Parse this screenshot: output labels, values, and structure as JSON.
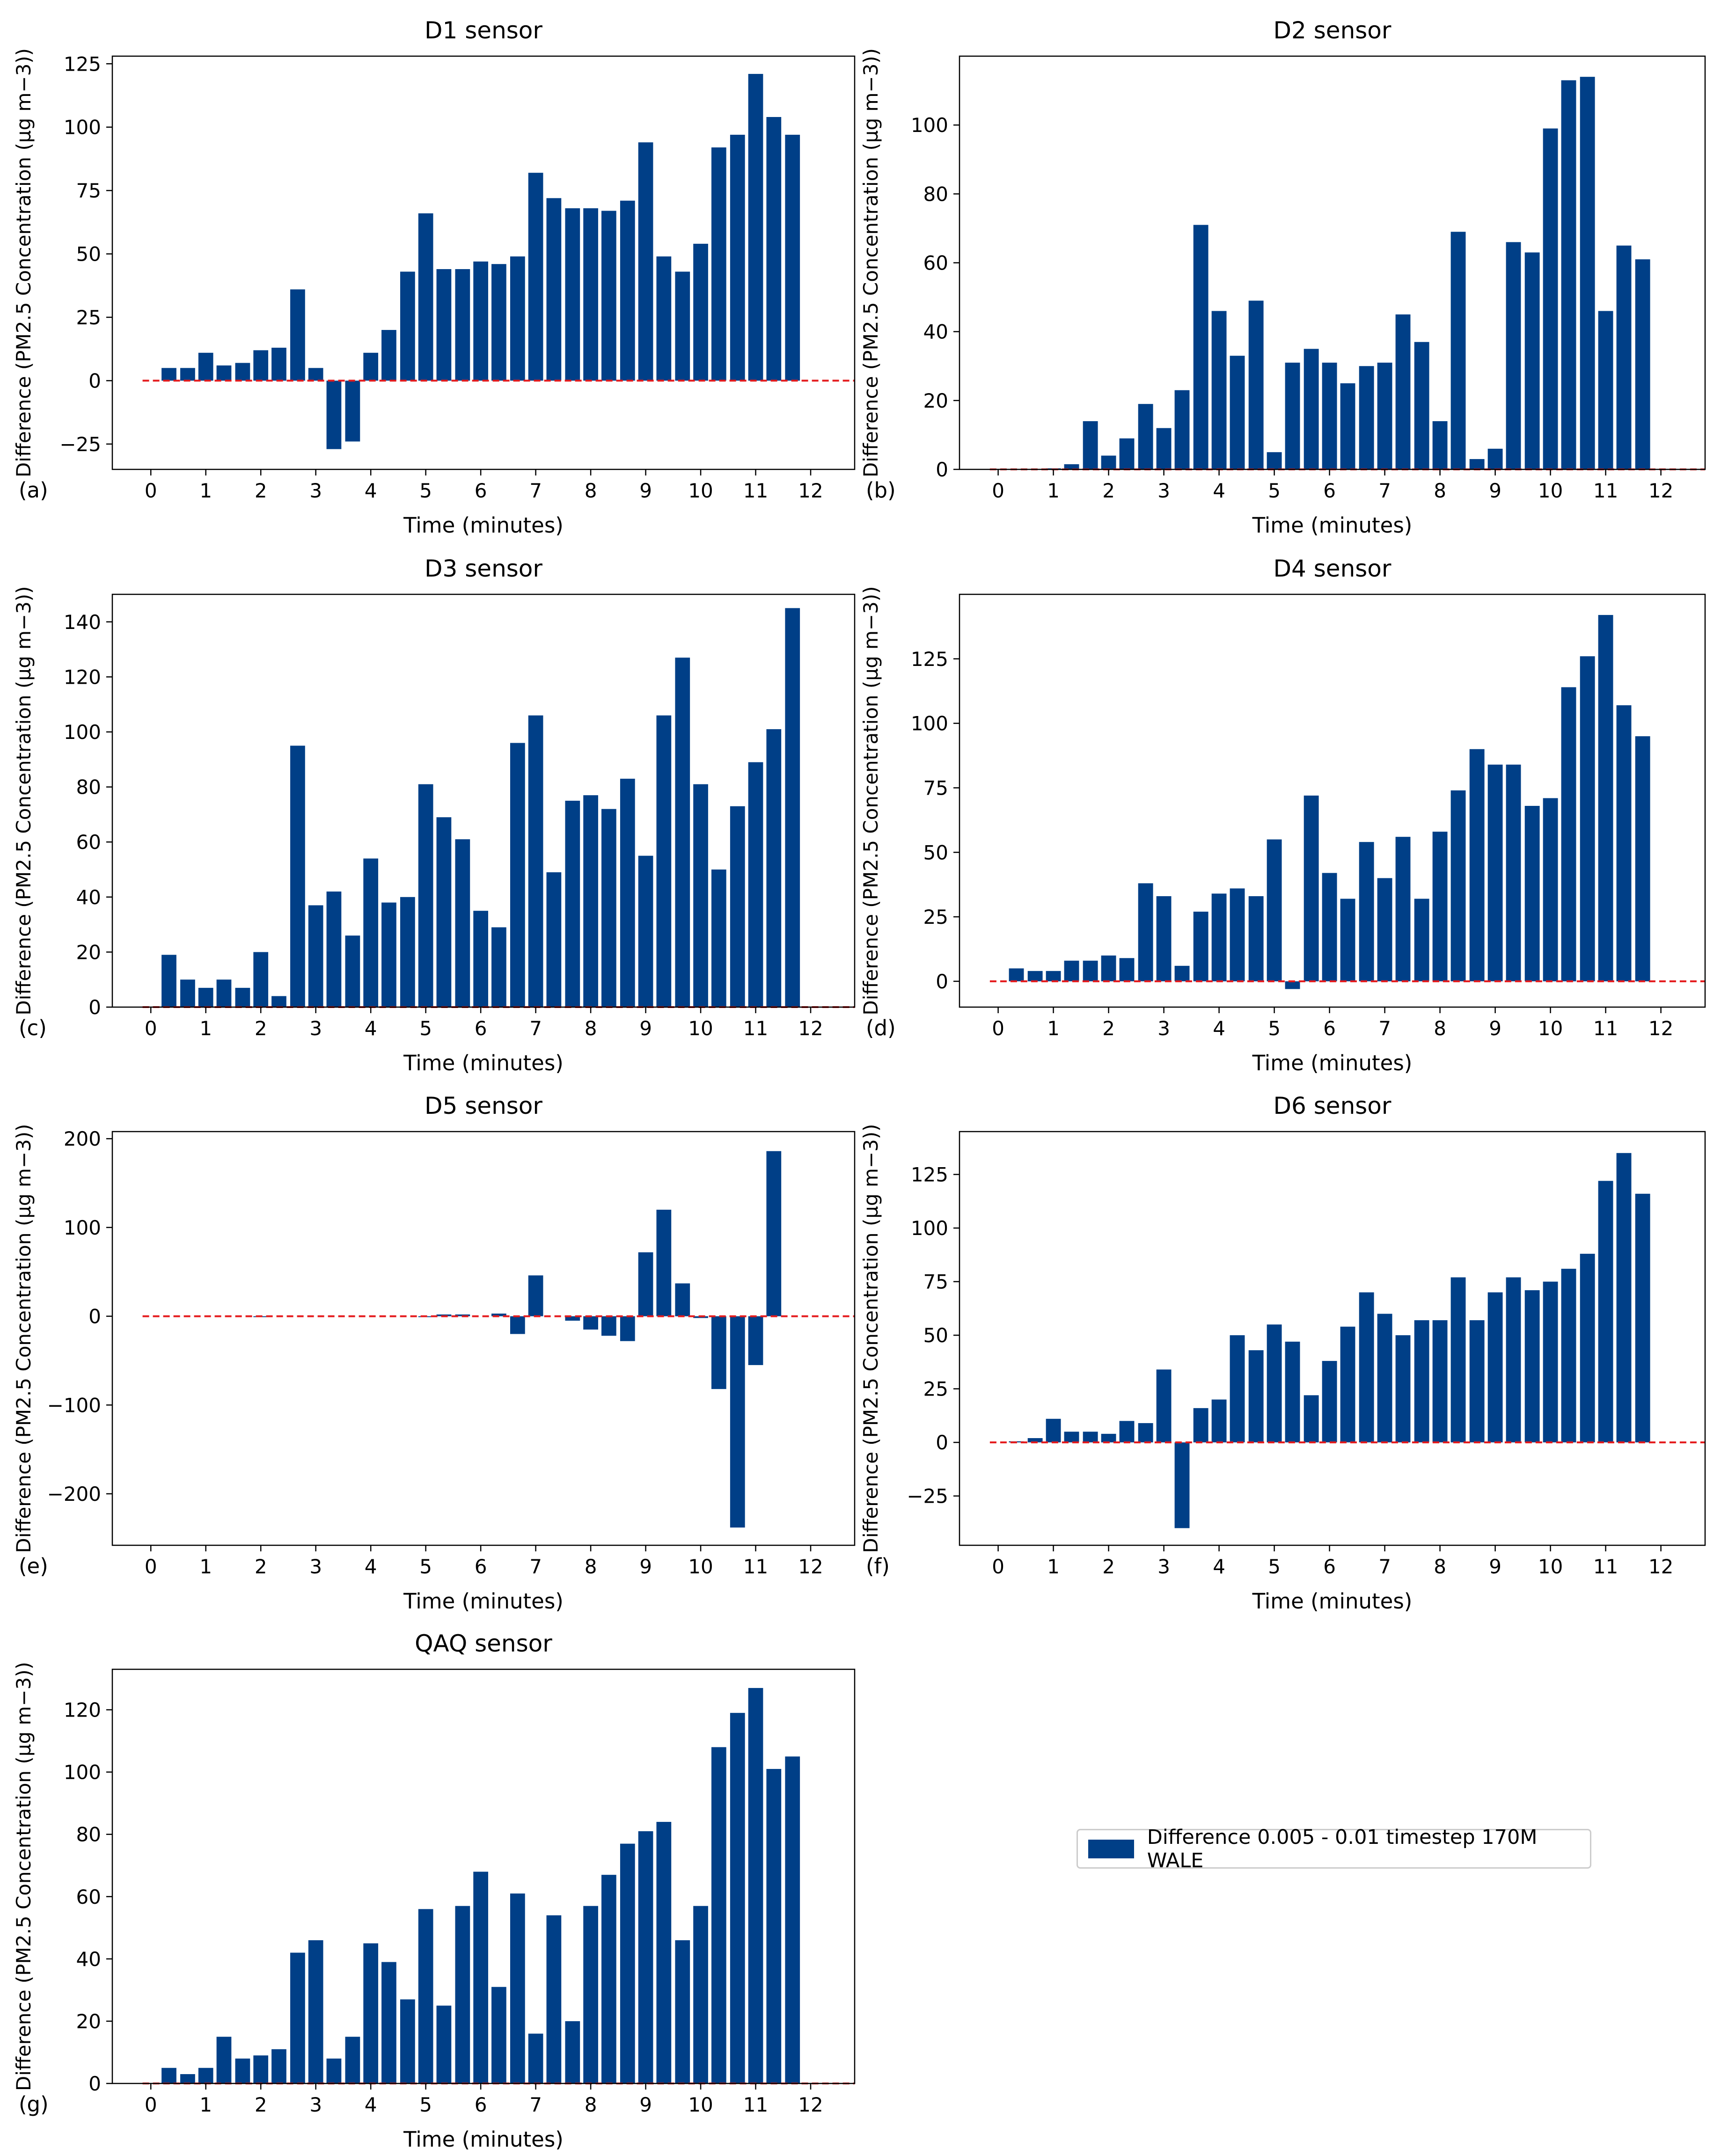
{
  "chart_data": [
    {
      "type": "bar",
      "panel_label": "(a)",
      "title": "D1 sensor",
      "xlabel": "Time (minutes)",
      "ylabel": "Difference (PM2.5 Concentration (μg m−3))",
      "ylim": [
        -35,
        128
      ],
      "yticks": [
        -25,
        0,
        25,
        50,
        75,
        100,
        125
      ],
      "xticks": [
        0,
        1,
        2,
        3,
        4,
        5,
        6,
        7,
        8,
        9,
        10,
        11,
        12
      ],
      "xlim": [
        -0.7,
        12.8
      ],
      "bar_width": 0.27,
      "grid": false,
      "zero_line": true,
      "series": [
        {
          "name": "Difference 0.005 - 0.01 timestep 170M WALE",
          "color": "#003f87",
          "x": [
            0.33,
            0.67,
            1.0,
            1.33,
            1.67,
            2.0,
            2.33,
            2.67,
            3.0,
            3.33,
            3.67,
            4.0,
            4.33,
            4.67,
            5.0,
            5.33,
            5.67,
            6.0,
            6.33,
            6.67,
            7.0,
            7.33,
            7.67,
            8.0,
            8.33,
            8.67,
            9.0,
            9.33,
            9.67,
            10.0,
            10.33,
            10.67,
            11.0,
            11.33,
            11.67,
            12.0
          ],
          "values": [
            5,
            5,
            11,
            6,
            7,
            12,
            13,
            36,
            5,
            -27,
            -24,
            11,
            20,
            43,
            66,
            44,
            44,
            47,
            46,
            49,
            82,
            72,
            68,
            68,
            67,
            71,
            94,
            49,
            43,
            54,
            92,
            97,
            121,
            104,
            97,
            0
          ]
        }
      ]
    },
    {
      "type": "bar",
      "panel_label": "(b)",
      "title": "D2 sensor",
      "xlabel": "Time (minutes)",
      "ylabel": "Difference (PM2.5 Concentration (μg m−3))",
      "ylim": [
        0,
        120
      ],
      "yticks": [
        0,
        20,
        40,
        60,
        80,
        100
      ],
      "xticks": [
        0,
        1,
        2,
        3,
        4,
        5,
        6,
        7,
        8,
        9,
        10,
        11,
        12
      ],
      "xlim": [
        -0.7,
        12.8
      ],
      "bar_width": 0.27,
      "grid": false,
      "zero_line": true,
      "series": [
        {
          "name": "Difference 0.005 - 0.01 timestep 170M WALE",
          "color": "#003f87",
          "x": [
            1.0,
            1.33,
            1.67,
            2.0,
            2.33,
            2.67,
            3.0,
            3.33,
            3.67,
            4.0,
            4.33,
            4.67,
            5.0,
            5.33,
            5.67,
            6.0,
            6.33,
            6.67,
            7.0,
            7.33,
            7.67,
            8.0,
            8.33,
            8.67,
            9.0,
            9.33,
            9.67,
            10.0,
            10.33,
            10.67,
            11.0,
            11.33,
            11.67,
            12.0
          ],
          "values": [
            0.3,
            1.5,
            14,
            4,
            9,
            19,
            12,
            23,
            71,
            46,
            33,
            49,
            5,
            31,
            35,
            31,
            25,
            30,
            31,
            45,
            37,
            14,
            69,
            3,
            6,
            66,
            63,
            99,
            113,
            114,
            46,
            65,
            61,
            0
          ]
        }
      ]
    },
    {
      "type": "bar",
      "panel_label": "(c)",
      "title": "D3 sensor",
      "xlabel": "Time (minutes)",
      "ylabel": "Difference (PM2.5 Concentration (μg m−3))",
      "ylim": [
        0,
        150
      ],
      "yticks": [
        0,
        20,
        40,
        60,
        80,
        100,
        120,
        140
      ],
      "xticks": [
        0,
        1,
        2,
        3,
        4,
        5,
        6,
        7,
        8,
        9,
        10,
        11,
        12
      ],
      "xlim": [
        -0.7,
        12.8
      ],
      "bar_width": 0.27,
      "grid": false,
      "zero_line": true,
      "series": [
        {
          "name": "Difference 0.005 - 0.01 timestep 170M WALE",
          "color": "#003f87",
          "x": [
            0.33,
            0.67,
            1.0,
            1.33,
            1.67,
            2.0,
            2.33,
            2.67,
            3.0,
            3.33,
            3.67,
            4.0,
            4.33,
            4.67,
            5.0,
            5.33,
            5.67,
            6.0,
            6.33,
            6.67,
            7.0,
            7.33,
            7.67,
            8.0,
            8.33,
            8.67,
            9.0,
            9.33,
            9.67,
            10.0,
            10.33,
            10.67,
            11.0,
            11.33,
            11.67,
            12.0
          ],
          "values": [
            19,
            10,
            7,
            10,
            7,
            20,
            4,
            95,
            37,
            42,
            26,
            54,
            38,
            40,
            81,
            69,
            61,
            35,
            29,
            96,
            106,
            49,
            75,
            77,
            72,
            83,
            55,
            106,
            127,
            81,
            50,
            73,
            89,
            101,
            145,
            0
          ]
        }
      ]
    },
    {
      "type": "bar",
      "panel_label": "(d)",
      "title": "D4 sensor",
      "xlabel": "Time (minutes)",
      "ylabel": "Difference (PM2.5 Concentration (μg m−3))",
      "ylim": [
        -10,
        150
      ],
      "yticks": [
        0,
        25,
        50,
        75,
        100,
        125
      ],
      "xticks": [
        0,
        1,
        2,
        3,
        4,
        5,
        6,
        7,
        8,
        9,
        10,
        11,
        12
      ],
      "xlim": [
        -0.7,
        12.8
      ],
      "bar_width": 0.27,
      "grid": false,
      "zero_line": true,
      "series": [
        {
          "name": "Difference 0.005 - 0.01 timestep 170M WALE",
          "color": "#003f87",
          "x": [
            0.33,
            0.67,
            1.0,
            1.33,
            1.67,
            2.0,
            2.33,
            2.67,
            3.0,
            3.33,
            3.67,
            4.0,
            4.33,
            4.67,
            5.0,
            5.33,
            5.67,
            6.0,
            6.33,
            6.67,
            7.0,
            7.33,
            7.67,
            8.0,
            8.33,
            8.67,
            9.0,
            9.33,
            9.67,
            10.0,
            10.33,
            10.67,
            11.0,
            11.33,
            11.67,
            12.0
          ],
          "values": [
            5,
            4,
            4,
            8,
            8,
            10,
            9,
            38,
            33,
            6,
            27,
            34,
            36,
            33,
            55,
            -3,
            72,
            42,
            32,
            54,
            40,
            56,
            32,
            58,
            74,
            90,
            84,
            84,
            68,
            71,
            114,
            126,
            142,
            107,
            95,
            0
          ]
        }
      ]
    },
    {
      "type": "bar",
      "panel_label": "(e)",
      "title": "D5 sensor",
      "xlabel": "Time (minutes)",
      "ylabel": "Difference (PM2.5 Concentration (μg m−3))",
      "ylim": [
        -258,
        208
      ],
      "yticks": [
        -200,
        -100,
        0,
        100,
        200
      ],
      "xticks": [
        0,
        1,
        2,
        3,
        4,
        5,
        6,
        7,
        8,
        9,
        10,
        11,
        12
      ],
      "xlim": [
        -0.7,
        12.8
      ],
      "bar_width": 0.27,
      "grid": false,
      "zero_line": true,
      "series": [
        {
          "name": "Difference 0.005 - 0.01 timestep 170M WALE",
          "color": "#003f87",
          "x": [
            1.0,
            1.33,
            1.67,
            2.0,
            2.33,
            2.67,
            3.0,
            3.33,
            3.67,
            4.0,
            4.33,
            4.67,
            5.0,
            5.33,
            5.67,
            6.0,
            6.33,
            6.67,
            7.0,
            7.33,
            7.67,
            8.0,
            8.33,
            8.67,
            9.0,
            9.33,
            9.67,
            10.0,
            10.33,
            10.67,
            11.0,
            11.33,
            11.67,
            12.0
          ],
          "values": [
            0,
            0,
            0,
            -1,
            0,
            0,
            0,
            0,
            0,
            0,
            0,
            0,
            -1,
            2,
            2,
            0,
            3,
            -20,
            46,
            0,
            -5,
            -15,
            -22,
            -28,
            72,
            120,
            37,
            -2,
            -82,
            -238,
            -55,
            186,
            0,
            0
          ]
        }
      ]
    },
    {
      "type": "bar",
      "panel_label": "(f)",
      "title": "D6 sensor",
      "xlabel": "Time (minutes)",
      "ylabel": "Difference (PM2.5 Concentration (μg m−3))",
      "ylim": [
        -48,
        145
      ],
      "yticks": [
        -25,
        0,
        25,
        50,
        75,
        100,
        125
      ],
      "xticks": [
        0,
        1,
        2,
        3,
        4,
        5,
        6,
        7,
        8,
        9,
        10,
        11,
        12
      ],
      "xlim": [
        -0.7,
        12.8
      ],
      "bar_width": 0.27,
      "grid": false,
      "zero_line": true,
      "series": [
        {
          "name": "Difference 0.005 - 0.01 timestep 170M WALE",
          "color": "#003f87",
          "x": [
            0.33,
            0.67,
            1.0,
            1.33,
            1.67,
            2.0,
            2.33,
            2.67,
            3.0,
            3.33,
            3.67,
            4.0,
            4.33,
            4.67,
            5.0,
            5.33,
            5.67,
            6.0,
            6.33,
            6.67,
            7.0,
            7.33,
            7.67,
            8.0,
            8.33,
            8.67,
            9.0,
            9.33,
            9.67,
            10.0,
            10.33,
            10.67,
            11.0,
            11.33,
            11.67,
            12.0
          ],
          "values": [
            0.5,
            2,
            11,
            5,
            5,
            4,
            10,
            9,
            34,
            -40,
            16,
            20,
            50,
            43,
            55,
            47,
            22,
            38,
            54,
            70,
            60,
            50,
            57,
            57,
            77,
            57,
            70,
            77,
            71,
            75,
            81,
            88,
            122,
            135,
            116,
            0
          ]
        }
      ]
    },
    {
      "type": "bar",
      "panel_label": "(g)",
      "title": "QAQ sensor",
      "xlabel": "Time (minutes)",
      "ylabel": "Difference (PM2.5 Concentration (μg m−3))",
      "ylim": [
        0,
        133
      ],
      "yticks": [
        0,
        20,
        40,
        60,
        80,
        100,
        120
      ],
      "xticks": [
        0,
        1,
        2,
        3,
        4,
        5,
        6,
        7,
        8,
        9,
        10,
        11,
        12
      ],
      "xlim": [
        -0.7,
        12.8
      ],
      "bar_width": 0.27,
      "grid": false,
      "zero_line": true,
      "series": [
        {
          "name": "Difference 0.005 - 0.01 timestep 170M WALE",
          "color": "#003f87",
          "x": [
            0.33,
            0.67,
            1.0,
            1.33,
            1.67,
            2.0,
            2.33,
            2.67,
            3.0,
            3.33,
            3.67,
            4.0,
            4.33,
            4.67,
            5.0,
            5.33,
            5.67,
            6.0,
            6.33,
            6.67,
            7.0,
            7.33,
            7.67,
            8.0,
            8.33,
            8.67,
            9.0,
            9.33,
            9.67,
            10.0,
            10.33,
            10.67,
            11.0,
            11.33,
            11.67,
            12.0
          ],
          "values": [
            5,
            3,
            5,
            15,
            8,
            9,
            11,
            42,
            46,
            8,
            15,
            45,
            39,
            27,
            56,
            25,
            57,
            68,
            31,
            61,
            16,
            54,
            20,
            57,
            67,
            77,
            81,
            84,
            46,
            57,
            108,
            119,
            127,
            101,
            105,
            0
          ]
        }
      ]
    }
  ],
  "legend": {
    "label": "Difference 0.005 - 0.01 timestep 170M WALE",
    "color": "#003f87",
    "placement": "center of empty bottom-right panel"
  },
  "colors": {
    "bar": "#003f87",
    "zero_line": "#e41a1c",
    "axis": "#000000"
  }
}
